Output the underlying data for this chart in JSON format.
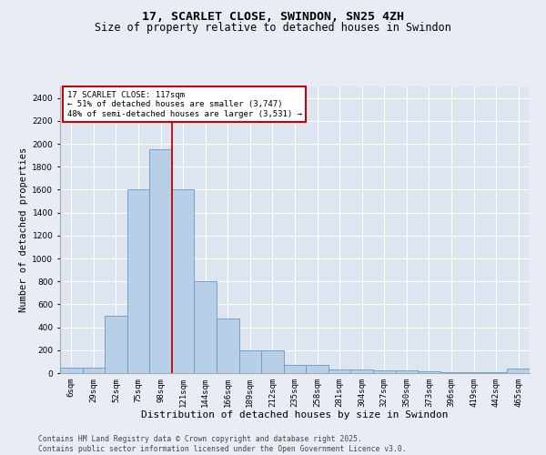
{
  "title1": "17, SCARLET CLOSE, SWINDON, SN25 4ZH",
  "title2": "Size of property relative to detached houses in Swindon",
  "xlabel": "Distribution of detached houses by size in Swindon",
  "ylabel": "Number of detached properties",
  "categories": [
    "6sqm",
    "29sqm",
    "52sqm",
    "75sqm",
    "98sqm",
    "121sqm",
    "144sqm",
    "166sqm",
    "189sqm",
    "212sqm",
    "235sqm",
    "258sqm",
    "281sqm",
    "304sqm",
    "327sqm",
    "350sqm",
    "373sqm",
    "396sqm",
    "419sqm",
    "442sqm",
    "465sqm"
  ],
  "values": [
    50,
    50,
    500,
    1600,
    1950,
    1600,
    800,
    475,
    200,
    195,
    75,
    75,
    30,
    30,
    20,
    20,
    15,
    10,
    5,
    5,
    40
  ],
  "bar_color": "#b8cfe8",
  "bar_edge_color": "#6899c8",
  "vline_x_index": 5,
  "vline_color": "#cc0000",
  "annotation_title": "17 SCARLET CLOSE: 117sqm",
  "annotation_line1": "← 51% of detached houses are smaller (3,747)",
  "annotation_line2": "48% of semi-detached houses are larger (3,531) →",
  "annotation_box_color": "#cc0000",
  "ylim": [
    0,
    2500
  ],
  "yticks": [
    0,
    200,
    400,
    600,
    800,
    1000,
    1200,
    1400,
    1600,
    1800,
    2000,
    2200,
    2400
  ],
  "bg_color": "#e8edf5",
  "plot_bg_color": "#dde5f0",
  "footer1": "Contains HM Land Registry data © Crown copyright and database right 2025.",
  "footer2": "Contains public sector information licensed under the Open Government Licence v3.0.",
  "title1_fontsize": 9.5,
  "title2_fontsize": 8.5,
  "annotation_fontsize": 6.5,
  "tick_fontsize": 6.5,
  "xlabel_fontsize": 8,
  "ylabel_fontsize": 7.5,
  "footer_fontsize": 5.8
}
